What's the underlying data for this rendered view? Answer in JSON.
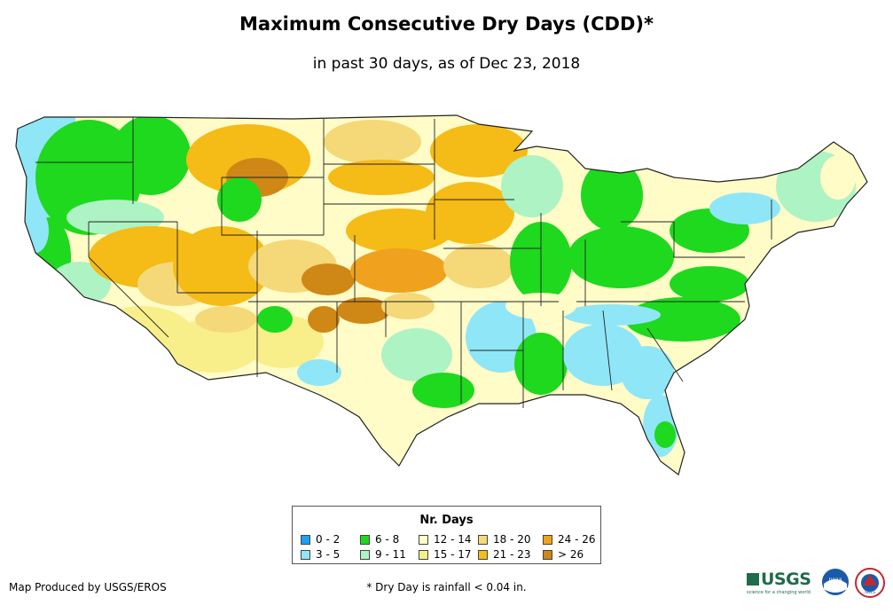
{
  "header": {
    "title": "Maximum Consecutive Dry Days (CDD)*",
    "subtitle": "in past 30 days, as of Dec 23, 2018"
  },
  "legend": {
    "title": "Nr. Days",
    "items": [
      {
        "label": "0 - 2",
        "color": "#1ea1f2"
      },
      {
        "label": "3 - 5",
        "color": "#8fe6f7"
      },
      {
        "label": "6 - 8",
        "color": "#1ed91e"
      },
      {
        "label": "9 - 11",
        "color": "#aef3c3"
      },
      {
        "label": "12 - 14",
        "color": "#fffcc8"
      },
      {
        "label": "15 - 17",
        "color": "#f8ef8a"
      },
      {
        "label": "18 - 20",
        "color": "#f5d878"
      },
      {
        "label": "21 - 23",
        "color": "#f5bb16"
      },
      {
        "label": "24 - 26",
        "color": "#f0a21e"
      },
      {
        "label": "> 26",
        "color": "#cf8716"
      }
    ]
  },
  "footer": {
    "credit": "Map Produced by USGS/EROS",
    "note": "* Dry Day is rainfall < 0.04 in."
  },
  "logos": {
    "usgs": "USGS",
    "usgs_tagline": "science for a changing world",
    "noaa": "noaa",
    "nws": "NWS"
  },
  "colors": {
    "state_border": "#222222",
    "usgs_green": "#1f6b4a",
    "noaa_blue": "#1a5aa8"
  }
}
